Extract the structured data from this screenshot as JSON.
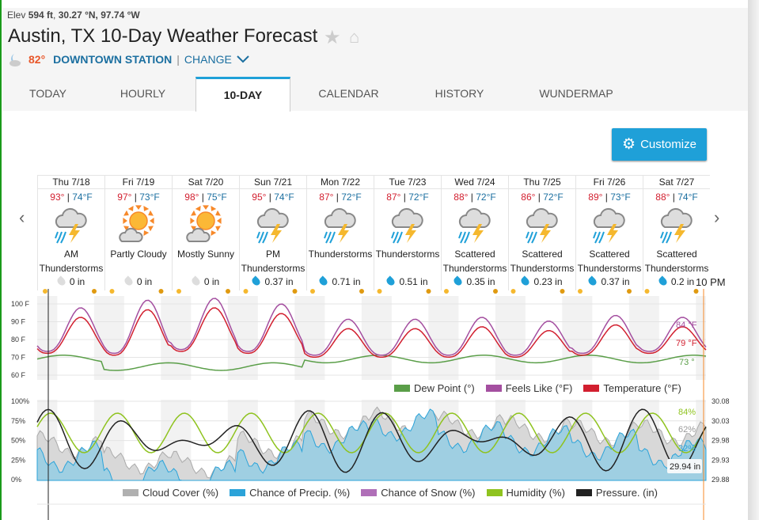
{
  "location": {
    "elev_label": "Elev",
    "elev": "594 ft",
    "coords": "30.27 °N, 97.74 °W",
    "title": "Austin, TX 10-Day Weather Forecast",
    "current_temp": "82°",
    "station": "DOWNTOWN STATION",
    "change": "CHANGE"
  },
  "tabs": [
    {
      "label": "TODAY"
    },
    {
      "label": "HOURLY"
    },
    {
      "label": "10-DAY"
    },
    {
      "label": "CALENDAR"
    },
    {
      "label": "HISTORY"
    },
    {
      "label": "WUNDERMAP"
    }
  ],
  "customize_label": "Customize",
  "days": [
    {
      "date": "Thu 7/18",
      "hi": "93°",
      "lo": "74°F",
      "cond": "AM Thunderstorms",
      "icon": "thunderstorm",
      "precip": "0 in",
      "wet": false
    },
    {
      "date": "Fri 7/19",
      "hi": "97°",
      "lo": "73°F",
      "cond": "Partly Cloudy",
      "icon": "sun-cloud",
      "precip": "0 in",
      "wet": false
    },
    {
      "date": "Sat 7/20",
      "hi": "98°",
      "lo": "75°F",
      "cond": "Mostly Sunny",
      "icon": "sun-cloud",
      "precip": "0 in",
      "wet": false
    },
    {
      "date": "Sun 7/21",
      "hi": "95°",
      "lo": "74°F",
      "cond": "PM Thunderstorms",
      "icon": "thunderstorm",
      "precip": "0.37 in",
      "wet": true
    },
    {
      "date": "Mon 7/22",
      "hi": "87°",
      "lo": "72°F",
      "cond": "Thunderstorms",
      "icon": "thunderstorm",
      "precip": "0.71 in",
      "wet": true
    },
    {
      "date": "Tue 7/23",
      "hi": "87°",
      "lo": "72°F",
      "cond": "Thunderstorms",
      "icon": "thunderstorm",
      "precip": "0.51 in",
      "wet": true
    },
    {
      "date": "Wed 7/24",
      "hi": "88°",
      "lo": "72°F",
      "cond": "Scattered Thunderstorms",
      "icon": "thunderstorm",
      "precip": "0.35 in",
      "wet": true
    },
    {
      "date": "Thu 7/25",
      "hi": "86°",
      "lo": "72°F",
      "cond": "Scattered Thunderstorms",
      "icon": "thunderstorm",
      "precip": "0.23 in",
      "wet": true
    },
    {
      "date": "Fri 7/26",
      "hi": "89°",
      "lo": "73°F",
      "cond": "Scattered Thunderstorms",
      "icon": "thunderstorm",
      "precip": "0.37 in",
      "wet": true
    },
    {
      "date": "Sat 7/27",
      "hi": "88°",
      "lo": "74°F",
      "cond": "Scattered Thunderstorms",
      "icon": "thunderstorm",
      "precip": "0.2 in",
      "wet": true
    }
  ],
  "cursor_time": "10 PM",
  "chart_data": [
    {
      "type": "line",
      "ylabels": [
        "100 F",
        "90 F",
        "80 F",
        "70 F",
        "60 F"
      ],
      "ylim": [
        60,
        100
      ],
      "series": [
        {
          "name": "Dew Point (°)",
          "color": "#5a9e48",
          "readout": "73 °"
        },
        {
          "name": "Feels Like (°F)",
          "color": "#a44fa0",
          "readout": "84 °F"
        },
        {
          "name": "Temperature (°F)",
          "color": "#d21f2f",
          "readout": "79 °F"
        }
      ],
      "temp_hi": [
        93,
        97,
        98,
        95,
        87,
        87,
        88,
        86,
        89,
        88
      ],
      "temp_lo": [
        74,
        73,
        75,
        74,
        72,
        72,
        72,
        72,
        73,
        74
      ]
    },
    {
      "type": "area",
      "ylabels": [
        "100%",
        "75%",
        "50%",
        "25%",
        "0%"
      ],
      "y2labels": [
        "30.08",
        "30.03",
        "29.98",
        "29.93",
        "29.88"
      ],
      "series": [
        {
          "name": "Cloud Cover (%)",
          "color": "#b0b0b0",
          "readout": "62%"
        },
        {
          "name": "Chance of Precip. (%)",
          "color": "#2ba3d9",
          "readout": "32%"
        },
        {
          "name": "Chance of Snow (%)",
          "color": "#b06fb8"
        },
        {
          "name": "Humidity (%)",
          "color": "#8fc31f",
          "readout": "84%"
        },
        {
          "name": "Pressure. (in)",
          "color": "#222222",
          "readout": "29.94 in"
        }
      ],
      "precip_daily": [
        30,
        5,
        5,
        30,
        55,
        70,
        55,
        50,
        45,
        35
      ],
      "cloud_daily": [
        45,
        25,
        20,
        45,
        70,
        75,
        70,
        65,
        60,
        60
      ]
    }
  ]
}
